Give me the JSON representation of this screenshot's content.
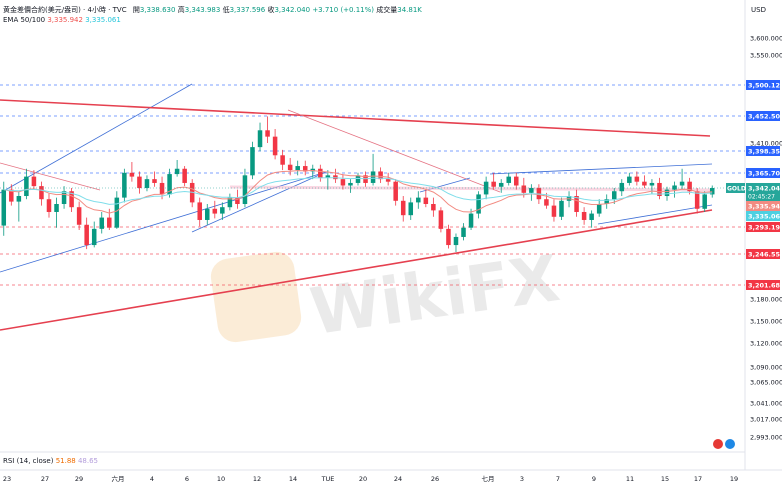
{
  "header": {
    "symbol_line": "黄金差價合約(美元/盎司) · 4小時 · TVC",
    "open_label": "開",
    "open": "3,338.630",
    "high_label": "高",
    "high": "3,343.983",
    "low_label": "低",
    "low": "3,337.596",
    "close_label": "收",
    "close": "3,342.040",
    "change": "+3.710 (+0.11%)",
    "volume_label": "成交量",
    "volume": "34.81K",
    "ema_label": "EMA 50/100",
    "ema50": "3,335.942",
    "ema100": "3,335.061"
  },
  "currency": "USD",
  "rsi": {
    "label": "RSI (14, close)",
    "value": "51.88",
    "ma": "48.65"
  },
  "watermark": "WikiFX",
  "colors": {
    "up": "#089981",
    "down": "#f23645",
    "ema50": "#f28b82",
    "ema100": "#80deea",
    "trend_blue": "#3f6fd6",
    "trend_red": "#e5404f",
    "dashed_blue": "#2962ff",
    "dashed_red": "#f23645",
    "tag_blue": "#2962ff",
    "tag_red": "#f23645",
    "tag_teal": "#26a69a"
  },
  "chart_data": {
    "type": "candlestick",
    "timeframe": "4H",
    "y_axis_ticks": [
      "3,600.000",
      "3,550.000",
      "3,410.000",
      "3,180.000",
      "3,150.000",
      "3,120.000",
      "3,090.000",
      "3,065.000",
      "3,041.000",
      "3,017.000",
      "2,993.000"
    ],
    "x_axis_labels": [
      "23",
      "27",
      "29",
      "六月",
      "4",
      "6",
      "10",
      "12",
      "14",
      "TUE",
      "20",
      "24",
      "26",
      "七月",
      "3",
      "7",
      "9",
      "11",
      "15",
      "17",
      "19"
    ],
    "price_tags": [
      {
        "value": "3,500.120",
        "kind": "blue"
      },
      {
        "value": "3,452.500",
        "kind": "blue"
      },
      {
        "value": "3,398.350",
        "kind": "blue"
      },
      {
        "value": "3,365.700",
        "kind": "blue"
      },
      {
        "value": "3,293.198",
        "kind": "red"
      },
      {
        "value": "3,246.550",
        "kind": "red"
      },
      {
        "value": "3,201.680",
        "kind": "red"
      }
    ],
    "last_price": {
      "symbol": "GOLD",
      "value": "3,342.040",
      "countdown": "02:45:27"
    },
    "ema_tags": [
      {
        "value": "3,335.942",
        "kind": "ema50"
      },
      {
        "value": "3,335.061",
        "kind": "ema100"
      }
    ],
    "candles": [
      [
        3295,
        3352,
        3278,
        3340
      ],
      [
        3340,
        3348,
        3320,
        3325
      ],
      [
        3325,
        3338,
        3300,
        3332
      ],
      [
        3332,
        3372,
        3328,
        3360
      ],
      [
        3360,
        3370,
        3340,
        3345
      ],
      [
        3345,
        3352,
        3320,
        3328
      ],
      [
        3328,
        3335,
        3305,
        3312
      ],
      [
        3312,
        3330,
        3292,
        3322
      ],
      [
        3322,
        3345,
        3316,
        3338
      ],
      [
        3338,
        3342,
        3312,
        3318
      ],
      [
        3318,
        3325,
        3288,
        3296
      ],
      [
        3296,
        3305,
        3255,
        3262
      ],
      [
        3262,
        3300,
        3258,
        3290
      ],
      [
        3290,
        3312,
        3282,
        3305
      ],
      [
        3305,
        3316,
        3288,
        3292
      ],
      [
        3292,
        3338,
        3290,
        3330
      ],
      [
        3330,
        3372,
        3324,
        3366
      ],
      [
        3366,
        3382,
        3352,
        3360
      ],
      [
        3360,
        3368,
        3335,
        3342
      ],
      [
        3342,
        3362,
        3338,
        3356
      ],
      [
        3356,
        3368,
        3344,
        3350
      ],
      [
        3350,
        3360,
        3328,
        3334
      ],
      [
        3334,
        3372,
        3330,
        3364
      ],
      [
        3364,
        3385,
        3360,
        3372
      ],
      [
        3372,
        3376,
        3345,
        3350
      ],
      [
        3350,
        3356,
        3318,
        3324
      ],
      [
        3324,
        3330,
        3294,
        3302
      ],
      [
        3302,
        3322,
        3296,
        3316
      ],
      [
        3316,
        3326,
        3304,
        3310
      ],
      [
        3310,
        3324,
        3302,
        3318
      ],
      [
        3318,
        3335,
        3314,
        3330
      ],
      [
        3330,
        3340,
        3316,
        3322
      ],
      [
        3322,
        3372,
        3318,
        3362
      ],
      [
        3362,
        3412,
        3356,
        3404
      ],
      [
        3404,
        3442,
        3398,
        3430
      ],
      [
        3430,
        3452,
        3410,
        3420
      ],
      [
        3420,
        3432,
        3386,
        3392
      ],
      [
        3392,
        3400,
        3370,
        3378
      ],
      [
        3378,
        3388,
        3362,
        3370
      ],
      [
        3370,
        3384,
        3362,
        3376
      ],
      [
        3376,
        3384,
        3362,
        3368
      ],
      [
        3368,
        3378,
        3356,
        3372
      ],
      [
        3372,
        3378,
        3352,
        3358
      ],
      [
        3358,
        3370,
        3340,
        3362
      ],
      [
        3362,
        3372,
        3350,
        3356
      ],
      [
        3356,
        3364,
        3340,
        3346
      ],
      [
        3346,
        3356,
        3336,
        3350
      ],
      [
        3350,
        3366,
        3346,
        3362
      ],
      [
        3362,
        3368,
        3344,
        3350
      ],
      [
        3350,
        3394,
        3346,
        3368
      ],
      [
        3368,
        3374,
        3350,
        3356
      ],
      [
        3356,
        3366,
        3346,
        3352
      ],
      [
        3352,
        3356,
        3320,
        3326
      ],
      [
        3326,
        3332,
        3300,
        3308
      ],
      [
        3308,
        3330,
        3302,
        3324
      ],
      [
        3324,
        3338,
        3316,
        3330
      ],
      [
        3330,
        3340,
        3318,
        3322
      ],
      [
        3322,
        3330,
        3306,
        3314
      ],
      [
        3314,
        3318,
        3284,
        3290
      ],
      [
        3290,
        3296,
        3256,
        3262
      ],
      [
        3262,
        3282,
        3250,
        3276
      ],
      [
        3276,
        3298,
        3270,
        3292
      ],
      [
        3292,
        3316,
        3288,
        3310
      ],
      [
        3310,
        3338,
        3304,
        3334
      ],
      [
        3334,
        3360,
        3328,
        3352
      ],
      [
        3352,
        3366,
        3340,
        3344
      ],
      [
        3344,
        3356,
        3336,
        3350
      ],
      [
        3350,
        3366,
        3346,
        3360
      ],
      [
        3360,
        3366,
        3340,
        3346
      ],
      [
        3346,
        3358,
        3330,
        3336
      ],
      [
        3336,
        3348,
        3326,
        3342
      ],
      [
        3342,
        3348,
        3322,
        3328
      ],
      [
        3328,
        3336,
        3316,
        3320
      ],
      [
        3320,
        3328,
        3300,
        3306
      ],
      [
        3306,
        3330,
        3302,
        3326
      ],
      [
        3326,
        3338,
        3318,
        3332
      ],
      [
        3332,
        3340,
        3306,
        3312
      ],
      [
        3312,
        3318,
        3296,
        3302
      ],
      [
        3302,
        3314,
        3292,
        3310
      ],
      [
        3310,
        3328,
        3306,
        3322
      ],
      [
        3322,
        3334,
        3316,
        3328
      ],
      [
        3328,
        3342,
        3322,
        3338
      ],
      [
        3338,
        3356,
        3332,
        3350
      ],
      [
        3350,
        3366,
        3346,
        3360
      ],
      [
        3360,
        3368,
        3346,
        3352
      ],
      [
        3352,
        3362,
        3342,
        3346
      ],
      [
        3346,
        3356,
        3334,
        3350
      ],
      [
        3350,
        3358,
        3328,
        3332
      ],
      [
        3332,
        3344,
        3326,
        3340
      ],
      [
        3340,
        3352,
        3330,
        3346
      ],
      [
        3346,
        3372,
        3340,
        3352
      ],
      [
        3352,
        3358,
        3334,
        3338
      ],
      [
        3338,
        3342,
        3310,
        3316
      ],
      [
        3316,
        3338,
        3312,
        3334
      ],
      [
        3334,
        3346,
        3330,
        3342
      ]
    ]
  }
}
